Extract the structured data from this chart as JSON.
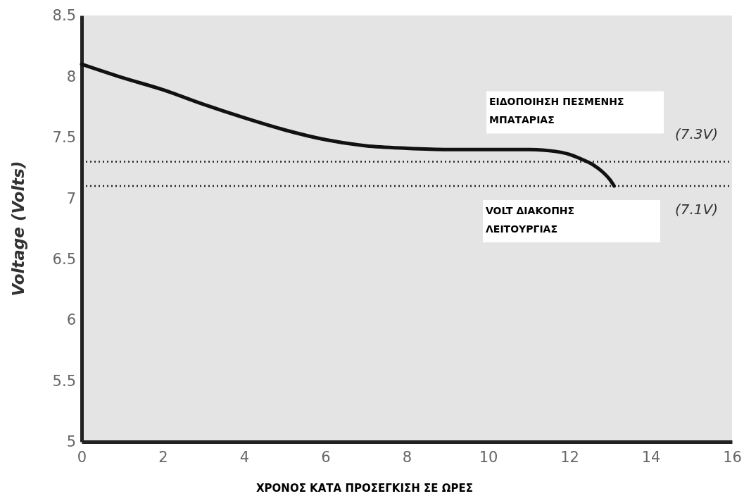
{
  "chart_data": {
    "type": "line",
    "xlabel": "ΧΡΟΝΟΣ ΚΑΤΑ ΠΡΟΣΕΓΚΙΣΗ ΣΕ ΩΡΕΣ",
    "ylabel": "Voltage (Volts)",
    "xlim": [
      0,
      16
    ],
    "xticks": [
      0,
      2,
      4,
      6,
      8,
      10,
      12,
      14,
      16
    ],
    "ylim": [
      5,
      8.5
    ],
    "yticks": [
      5,
      5.5,
      6,
      6.5,
      7,
      7.5,
      8,
      8.5
    ],
    "series": [
      {
        "color": "#111111",
        "x": [
          0,
          1,
          2,
          3,
          4,
          5,
          6,
          7,
          8,
          9,
          10,
          11,
          11.5,
          12,
          12.3,
          12.6,
          12.8,
          13,
          13.1
        ],
        "values": [
          8.1,
          7.99,
          7.89,
          7.77,
          7.66,
          7.56,
          7.48,
          7.43,
          7.41,
          7.4,
          7.4,
          7.4,
          7.39,
          7.36,
          7.32,
          7.27,
          7.22,
          7.15,
          7.1
        ]
      }
    ],
    "ref_lines": [
      {
        "axis": "y",
        "value": 7.3,
        "label": "(7.3V)",
        "line_style": "dotted"
      },
      {
        "axis": "y",
        "value": 7.1,
        "label": "(7.1V)",
        "line_style": "dotted"
      }
    ],
    "annotations": [
      "ΕΙΔΟΠΟΙΗΣΗ ΠΕΣΜΕΝΗΣ\nΜΠΑΤΑΡΙΑΣ",
      "VOLT ΔΙΑΚΟΠΗΣ\nΛΕΙΤΟΥΡΓΙΑΣ"
    ],
    "grid": false,
    "marker": "none",
    "line_style": "solid"
  }
}
